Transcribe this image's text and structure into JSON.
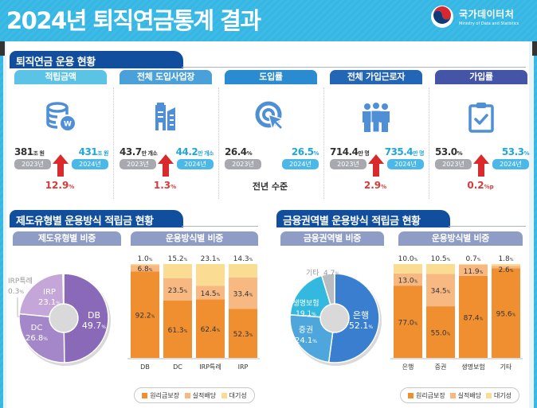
{
  "header": {
    "title": "2024년 퇴직연금통계 결과",
    "logo_ko": "국가데이터처",
    "logo_en": "Ministry of Data and Statistics"
  },
  "section1": {
    "title": "퇴직연금 운용 현황",
    "cards": [
      {
        "label": "적립금액",
        "pill_color": "#5bc3e6",
        "icon": "coins-won-icon",
        "old_value": "381",
        "old_unit": "조 원",
        "new_value": "431",
        "new_unit": "조 원",
        "old_year": "2023년",
        "new_year": "2024년",
        "direction": "up",
        "change": "12.9",
        "change_unit": "%"
      },
      {
        "label": "전체 도입사업장",
        "pill_color": "#4aa0d9",
        "icon": "building-icon",
        "old_value": "43.7",
        "old_unit": "만 개소",
        "new_value": "44.2",
        "new_unit": "만 개소",
        "old_year": "2023년",
        "new_year": "2024년",
        "direction": "up",
        "change": "1.3",
        "change_unit": "%"
      },
      {
        "label": "도입률",
        "pill_color": "#2a8bd0",
        "icon": "target-cursor-icon",
        "old_value": "26.4",
        "old_unit": "%",
        "new_value": "26.5",
        "new_unit": "%",
        "old_year": "2023년",
        "new_year": "2024년",
        "direction": "none",
        "change": "전년 수준",
        "change_unit": ""
      },
      {
        "label": "전체 가입근로자",
        "pill_color": "#2266b5",
        "icon": "people-group-icon",
        "old_value": "714.4",
        "old_unit": "만 명",
        "new_value": "735.4",
        "new_unit": "만 명",
        "old_year": "2023년",
        "new_year": "2024년",
        "direction": "up",
        "change": "2.9",
        "change_unit": "%"
      },
      {
        "label": "가입률",
        "pill_color": "#4455a8",
        "icon": "clipboard-check-icon",
        "old_value": "53.0",
        "old_unit": "%",
        "new_value": "53.3",
        "new_unit": "%",
        "old_year": "2023년",
        "new_year": "2024년",
        "direction": "up",
        "change": "0.2",
        "change_unit": "%p"
      }
    ]
  },
  "section2": {
    "title": "제도유형별 운용방식 적립금 현황",
    "pie_label": "제도유형별 비중",
    "bar_label": "운용방식별 비중"
  },
  "section3": {
    "title": "금융권역별 운용방식 적립금 현황",
    "pie_label": "금융권역별 비중",
    "bar_label": "운용방식별 비중"
  },
  "legend": {
    "items": [
      {
        "name": "원리금보장",
        "color": "#ef8f2f"
      },
      {
        "name": "실적배당",
        "color": "#f7b882"
      },
      {
        "name": "대기성",
        "color": "#fbdc93"
      }
    ]
  },
  "chart_data": [
    {
      "type": "pie",
      "title": "제도유형별 비중",
      "categories": [
        "DB",
        "DC",
        "IRP",
        "IRP특례"
      ],
      "values": [
        49.7,
        26.8,
        23.1,
        0.3
      ],
      "unit": "%",
      "colors": [
        "#8a6ab8",
        "#a487c9",
        "#c4a6d9",
        "#e6daf0"
      ]
    },
    {
      "type": "bar",
      "stacked": true,
      "title": "운용방식별 비중",
      "categories": [
        "DB",
        "DC",
        "IRP특례",
        "IRP"
      ],
      "series": [
        {
          "name": "원리금보장",
          "values": [
            92.2,
            61.3,
            62.4,
            52.3
          ]
        },
        {
          "name": "실적배당",
          "values": [
            6.8,
            23.5,
            14.5,
            33.4
          ]
        },
        {
          "name": "대기성",
          "values": [
            1.0,
            15.2,
            23.1,
            14.3
          ]
        }
      ],
      "unit": "%",
      "ylim": [
        0,
        100
      ]
    },
    {
      "type": "pie",
      "title": "금융권역별 비중",
      "categories": [
        "은행",
        "증권",
        "생명보험",
        "기타"
      ],
      "values": [
        52.1,
        24.1,
        19.1,
        4.7
      ],
      "unit": "%",
      "colors": [
        "#3a7fcf",
        "#4ea6dc",
        "#33b9df",
        "#b9bcc0"
      ]
    },
    {
      "type": "bar",
      "stacked": true,
      "title": "운용방식별 비중",
      "categories": [
        "은행",
        "증권",
        "생명보험",
        "기타"
      ],
      "series": [
        {
          "name": "원리금보장",
          "values": [
            77.0,
            55.0,
            87.4,
            95.6
          ]
        },
        {
          "name": "실적배당",
          "values": [
            13.0,
            34.5,
            11.9,
            2.6
          ]
        },
        {
          "name": "대기성",
          "values": [
            10.0,
            10.5,
            0.7,
            1.8
          ]
        }
      ],
      "unit": "%",
      "ylim": [
        0,
        100
      ]
    }
  ]
}
